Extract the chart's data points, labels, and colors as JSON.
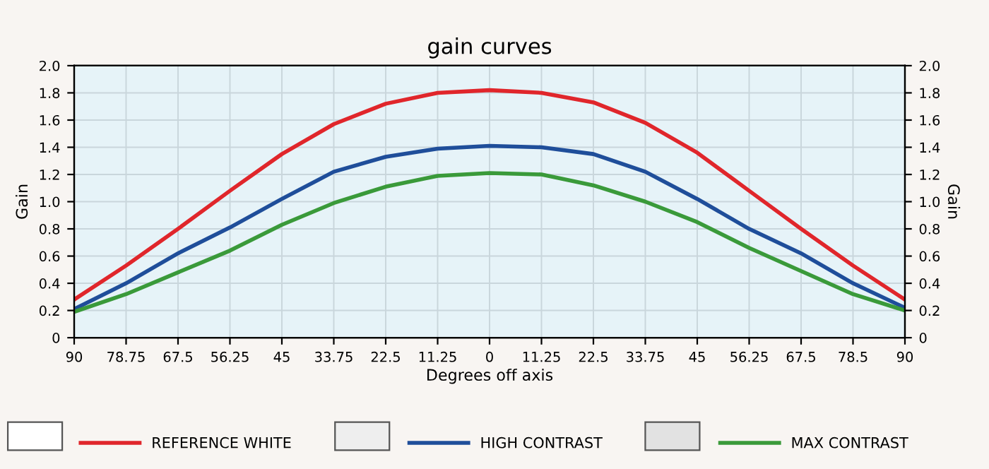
{
  "chart_data": {
    "type": "line",
    "title": "gain curves",
    "xlabel": "Degrees off axis",
    "ylabel": "Gain",
    "y2label": "Gain",
    "categories": [
      "90",
      "78.75",
      "67.5",
      "56.25",
      "45",
      "33.75",
      "22.5",
      "11.25",
      "0",
      "11.25",
      "22.5",
      "33.75",
      "45",
      "56.25",
      "67.5",
      "78.5",
      "90"
    ],
    "series": [
      {
        "name": "REFERENCE WHITE",
        "color": "#e0262b",
        "values": [
          0.28,
          0.53,
          0.8,
          1.08,
          1.35,
          1.57,
          1.72,
          1.8,
          1.82,
          1.8,
          1.73,
          1.58,
          1.36,
          1.08,
          0.8,
          0.53,
          0.28
        ]
      },
      {
        "name": "HIGH CONTRAST",
        "color": "#1f4e9a",
        "values": [
          0.21,
          0.4,
          0.62,
          0.81,
          1.02,
          1.22,
          1.33,
          1.39,
          1.41,
          1.4,
          1.35,
          1.22,
          1.02,
          0.8,
          0.62,
          0.4,
          0.22
        ]
      },
      {
        "name": "MAX CONTRAST",
        "color": "#3a9a3a",
        "values": [
          0.19,
          0.32,
          0.48,
          0.64,
          0.83,
          0.99,
          1.11,
          1.19,
          1.21,
          1.2,
          1.12,
          1.0,
          0.85,
          0.66,
          0.49,
          0.32,
          0.2
        ]
      }
    ],
    "ylim": [
      0,
      2.0
    ],
    "yticks": [
      {
        "value": 0,
        "label": "0"
      },
      {
        "value": 0.2,
        "label": "0.2"
      },
      {
        "value": 0.4,
        "label": "0.4"
      },
      {
        "value": 0.6,
        "label": "0.6"
      },
      {
        "value": 0.8,
        "label": "0.8"
      },
      {
        "value": 1.0,
        "label": "1.0"
      },
      {
        "value": 1.2,
        "label": "1.2"
      },
      {
        "value": 1.4,
        "label": "1.4"
      },
      {
        "value": 1.6,
        "label": "1.6"
      },
      {
        "value": 1.8,
        "label": "1.8"
      },
      {
        "value": 2.0,
        "label": "2.0"
      }
    ],
    "y2lim": [
      0,
      2.0
    ],
    "y2ticks": [
      {
        "value": 0,
        "label": "0"
      },
      {
        "value": 0.2,
        "label": "0.2"
      },
      {
        "value": 0.4,
        "label": "0.4"
      },
      {
        "value": 0.6,
        "label": "0.6"
      },
      {
        "value": 0.8,
        "label": "0.8"
      },
      {
        "value": 1.0,
        "label": "1.0"
      },
      {
        "value": 1.2,
        "label": "1.2"
      },
      {
        "value": 1.4,
        "label": "1.4"
      },
      {
        "value": 1.6,
        "label": "1.6"
      },
      {
        "value": 1.8,
        "label": "1.8"
      },
      {
        "value": 2.0,
        "label": "2.0"
      }
    ],
    "grid": true,
    "legend": "bottom",
    "marker": "none",
    "line_style": "solid"
  }
}
